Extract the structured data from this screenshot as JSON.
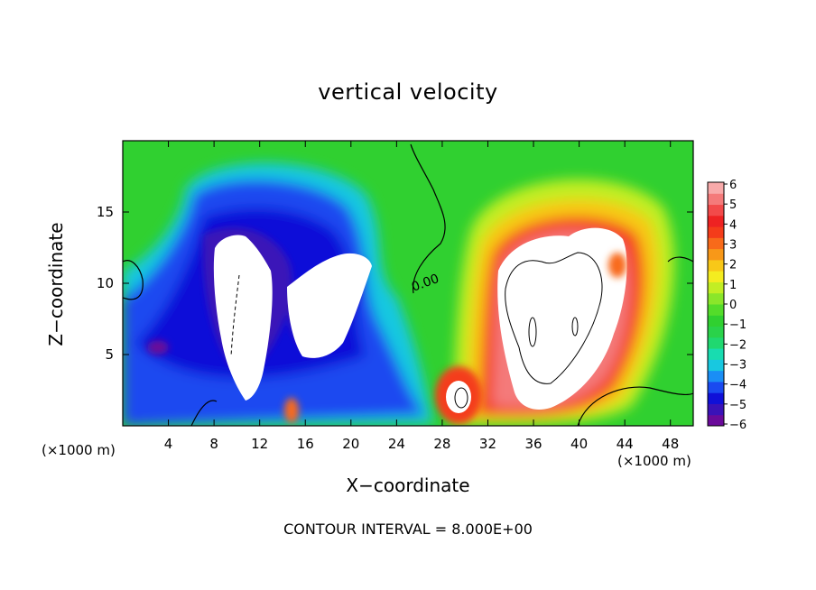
{
  "chart_data": {
    "type": "heatmap",
    "title": "vertical velocity",
    "xlabel": "X−coordinate",
    "ylabel": "Z−coordinate",
    "x_unit": "(×1000 m)",
    "footer": "CONTOUR INTERVAL = 8.000E+00",
    "contour_label": "0.00",
    "xlim": [
      0,
      50
    ],
    "ylim": [
      0,
      20
    ],
    "x_ticks": [
      4,
      8,
      12,
      16,
      20,
      24,
      28,
      32,
      36,
      40,
      44,
      48
    ],
    "y_ticks": [
      5,
      10,
      15
    ],
    "colorbar": {
      "ticks": [
        "6",
        "5",
        "4",
        "3",
        "2",
        "1",
        "0",
        "−1",
        "−2",
        "−3",
        "−4",
        "−5",
        "−6"
      ],
      "range": [
        -6,
        6
      ],
      "colors": [
        "#6a0a9a",
        "#3a12b8",
        "#1010d8",
        "#1a4af0",
        "#1a8ef5",
        "#18c8e0",
        "#18dcb0",
        "#20d870",
        "#2ad24a",
        "#30d030",
        "#54dc2a",
        "#8ae62a",
        "#c2ee24",
        "#f4ec20",
        "#f8c818",
        "#f89818",
        "#f86a1a",
        "#f43c1a",
        "#ee2222",
        "#f24a4a",
        "#f47a7a",
        "#f8aaaa"
      ]
    },
    "features": [
      {
        "name": "downdraft-left",
        "sign": "negative",
        "x_center": 11,
        "z_center": 10
      },
      {
        "name": "downdraft-mid",
        "sign": "negative",
        "x_center": 20,
        "z_center": 9
      },
      {
        "name": "updraft-core",
        "sign": "positive",
        "x_center": 38,
        "z_center": 9
      },
      {
        "name": "updraft-small",
        "sign": "positive",
        "x_center": 29.5,
        "z_center": 2
      }
    ]
  }
}
